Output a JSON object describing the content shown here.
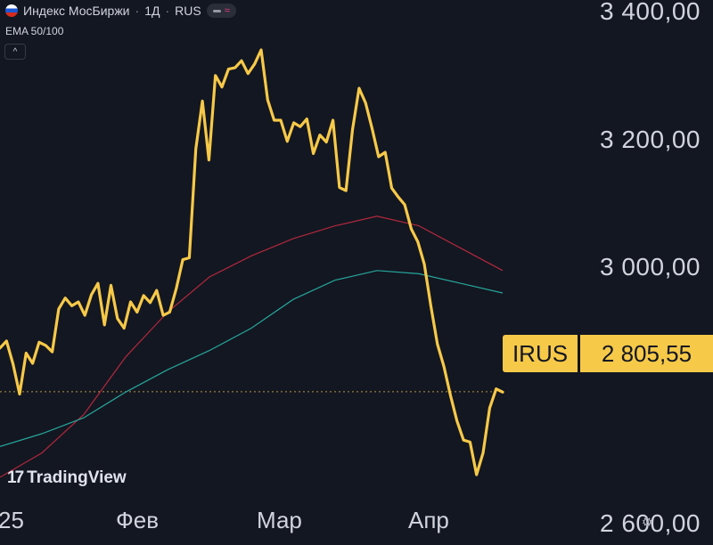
{
  "header": {
    "title": "Индекс МосБиржи",
    "interval": "1Д",
    "exchange": "RUS",
    "sep": "·",
    "flag_icon": "russia-flag-icon"
  },
  "indicator": {
    "label": "EMA 50/100"
  },
  "collapse_icon": "^",
  "branding": {
    "name": "TradingView",
    "logo_text": "17"
  },
  "badge": {
    "ticker": "IRUS",
    "price": "2 805,55"
  },
  "colors": {
    "price": "#f7c948",
    "ema50": "#26a69a",
    "ema100": "#b2283b",
    "background": "#131722"
  },
  "chart_data": {
    "type": "line",
    "x_labels": [
      "25",
      "Фев",
      "Мар",
      "Апр"
    ],
    "y_tick_labels": [
      "3 400,00",
      "3 200,00",
      "3 000,00",
      "2 600,00"
    ],
    "y_ticks": [
      3400,
      3200,
      3000,
      2600
    ],
    "ylim": [
      2566,
      3418
    ],
    "last_price": 2805.55,
    "series": [
      {
        "role": "price",
        "values": [
          2874,
          2885,
          2849,
          2802,
          2866,
          2850,
          2883,
          2878,
          2868,
          2935,
          2952,
          2940,
          2946,
          2925,
          2957,
          2975,
          2910,
          2972,
          2920,
          2905,
          2946,
          2930,
          2956,
          2945,
          2964,
          2925,
          2930,
          2967,
          3012,
          3015,
          3185,
          3260,
          3168,
          3300,
          3282,
          3310,
          3312,
          3323,
          3303,
          3318,
          3340,
          3262,
          3230,
          3230,
          3197,
          3226,
          3220,
          3232,
          3178,
          3207,
          3196,
          3230,
          3125,
          3120,
          3215,
          3280,
          3257,
          3217,
          3173,
          3180,
          3124,
          3110,
          3098,
          3060,
          3040,
          3005,
          2940,
          2880,
          2845,
          2800,
          2760,
          2730,
          2727,
          2676,
          2710,
          2780,
          2810,
          2805
        ]
      },
      {
        "name": "EMA 50",
        "role": "ema50",
        "values": [
          2720,
          2740,
          2765,
          2805,
          2840,
          2870,
          2905,
          2950,
          2980,
          2995,
          2990,
          2975,
          2960
        ]
      },
      {
        "name": "EMA 100",
        "role": "ema100",
        "values": [
          2672,
          2710,
          2770,
          2860,
          2930,
          2985,
          3018,
          3045,
          3065,
          3080,
          3065,
          3030,
          2995
        ]
      }
    ]
  }
}
